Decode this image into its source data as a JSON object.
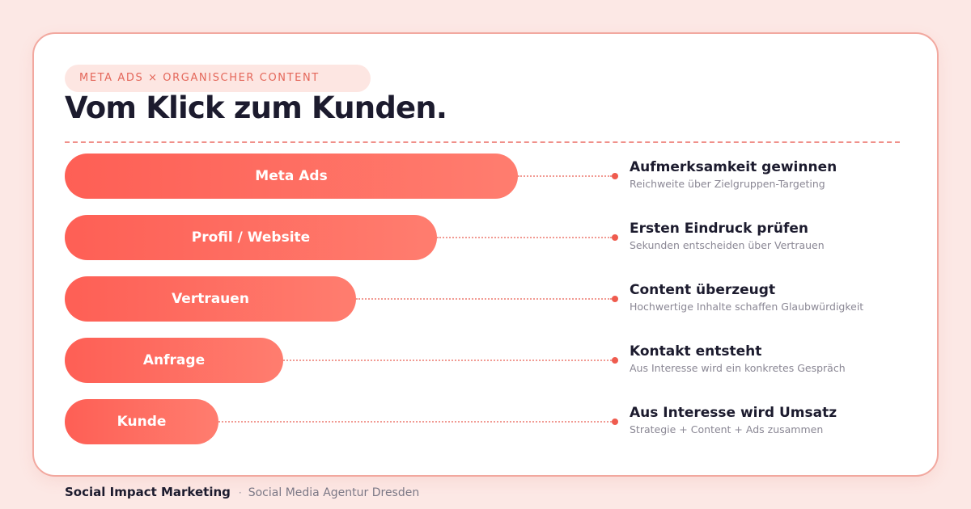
{
  "eyebrow": "META ADS × ORGANISCHER CONTENT",
  "title": "Vom Klick zum Kunden.",
  "funnel": [
    {
      "stage": "Meta Ads",
      "heading": "Aufmerksamkeit gewinnen",
      "description": "Reichweite über Zielgruppen-Targeting"
    },
    {
      "stage": "Profil / Website",
      "heading": "Ersten Eindruck prüfen",
      "description": "Sekunden entscheiden über Vertrauen"
    },
    {
      "stage": "Vertrauen",
      "heading": "Content überzeugt",
      "description": "Hochwertige Inhalte schaffen Glaubwürdigkeit"
    },
    {
      "stage": "Anfrage",
      "heading": "Kontakt entsteht",
      "description": "Aus Interesse wird ein konkretes Gespräch"
    },
    {
      "stage": "Kunde",
      "heading": "Aus Interesse wird Umsatz",
      "description": "Strategie + Content + Ads zusammen"
    }
  ],
  "footer": {
    "brand": "Social Impact Marketing",
    "separator": "·",
    "agency": "Social Media Agentur Dresden"
  },
  "colors": {
    "accent": "#fe5f55",
    "accent_light": "#ff7d6f",
    "text_dark": "#1c1b2e",
    "text_muted": "#8a8794",
    "background": "#fce8e5"
  }
}
